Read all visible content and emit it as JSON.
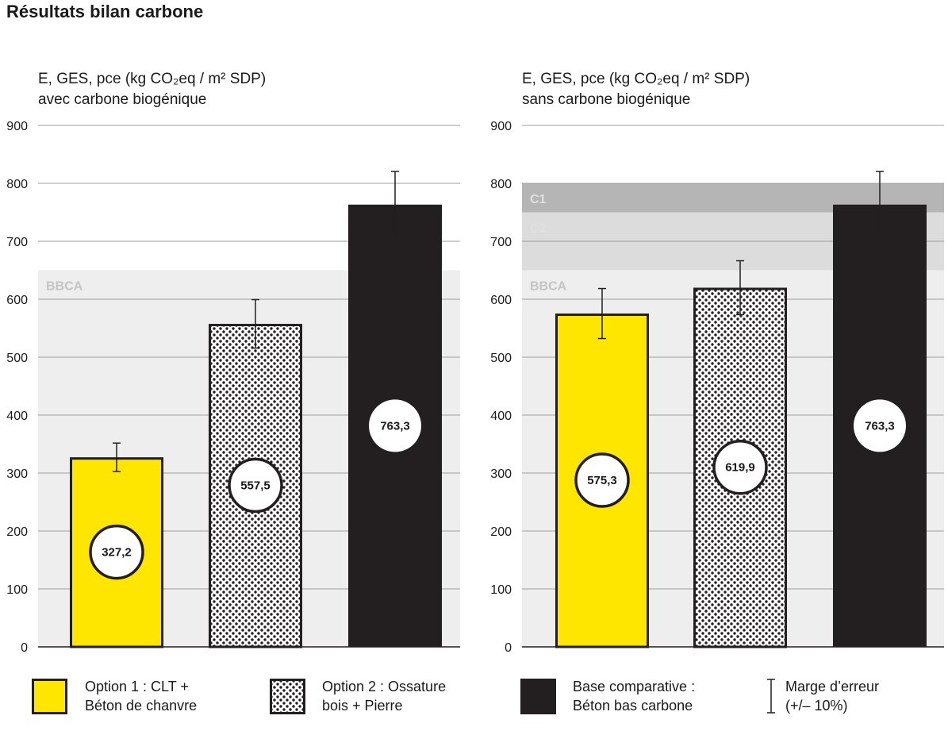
{
  "title": "Résultats bilan carbone",
  "colors": {
    "option1": "#ffe600",
    "base": "#231f20",
    "bbca_zone": "#eeeeee",
    "c2_zone": "#dcdcdc",
    "c1_zone": "#b5b5b6"
  },
  "legend": [
    {
      "key": "option1",
      "line1": "Option 1 : CLT +",
      "line2": "Béton de chanvre"
    },
    {
      "key": "option2",
      "line1": "Option 2 : Ossature",
      "line2": "bois + Pierre"
    },
    {
      "key": "base",
      "line1": "Base comparative :",
      "line2": "Béton bas carbone"
    },
    {
      "key": "error",
      "line1": "Marge d’erreur",
      "line2": "(+/– 10%)"
    }
  ],
  "chart_data": [
    {
      "type": "bar",
      "ylabel_line1": "E, GES, pce (kg CO₂eq / m² SDP)",
      "ylabel_line2": "avec carbone biogénique",
      "ylim": [
        0,
        900
      ],
      "yticks": [
        0,
        100,
        200,
        300,
        400,
        500,
        600,
        700,
        800,
        900
      ],
      "grid": true,
      "zones": [
        {
          "label": "BBCA",
          "from": 0,
          "to": 650
        }
      ],
      "categories": [
        "Option 1 : CLT + Béton de chanvre",
        "Option 2 : Ossature bois + Pierre",
        "Base comparative : Béton bas carbone"
      ],
      "values": [
        327.2,
        557.5,
        763.3
      ],
      "value_labels": [
        "327,2",
        "557,5",
        "763,3"
      ],
      "error_margin_pct": 10
    },
    {
      "type": "bar",
      "ylabel_line1": "E, GES, pce (kg CO₂eq / m² SDP)",
      "ylabel_line2": "sans carbone biogénique",
      "ylim": [
        0,
        900
      ],
      "yticks": [
        0,
        100,
        200,
        300,
        400,
        500,
        600,
        700,
        800,
        900
      ],
      "grid": true,
      "zones": [
        {
          "label": "BBCA",
          "from": 0,
          "to": 650
        },
        {
          "label": "C2",
          "from": 650,
          "to": 750
        },
        {
          "label": "C1",
          "from": 750,
          "to": 800
        }
      ],
      "categories": [
        "Option 1 : CLT + Béton de chanvre",
        "Option 2 : Ossature bois + Pierre",
        "Base comparative : Béton bas carbone"
      ],
      "values": [
        575.3,
        619.9,
        763.3
      ],
      "value_labels": [
        "575,3",
        "619,9",
        "763,3"
      ],
      "error_margin_pct": 10
    }
  ]
}
